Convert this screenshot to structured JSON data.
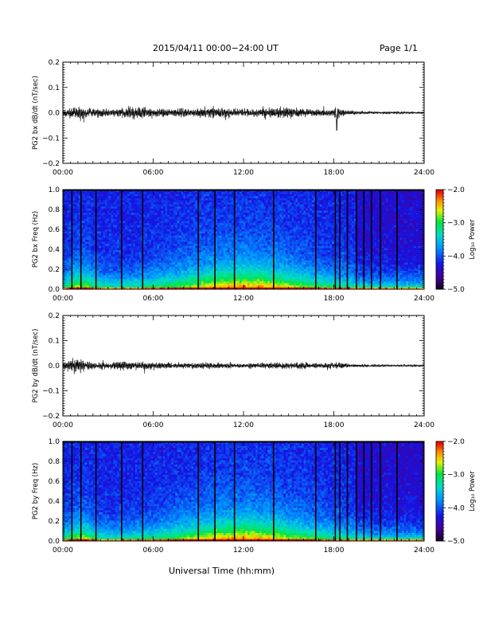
{
  "header": {
    "title": "2015/04/11  00:00−24:00 UT",
    "page": "Page 1/1"
  },
  "chart_data": [
    {
      "type": "line",
      "ylabel": "PG2 bx dB/dt (nT/sec)",
      "xlim": [
        0,
        24
      ],
      "ylim": [
        -0.2,
        0.2
      ],
      "yticks": [
        -0.2,
        -0.1,
        0.0,
        0.1,
        0.2
      ],
      "ytick_labels": [
        "−0.2",
        "−0.1",
        "0.0",
        "0.1",
        "0.2"
      ],
      "xtick_labels": [
        "00:00",
        "06:00",
        "12:00",
        "18:00",
        "24:00"
      ],
      "series": [
        {
          "color": "#000000",
          "envelope_hours": [
            0,
            0.5,
            1,
            1.5,
            2,
            2.5,
            3,
            3.5,
            4,
            4.5,
            5,
            5.5,
            6,
            6.5,
            7,
            7.5,
            8,
            8.5,
            9,
            9.5,
            10,
            10.5,
            11,
            11.5,
            12,
            12.5,
            13,
            13.5,
            14,
            14.5,
            15,
            15.5,
            16,
            16.5,
            17,
            17.5,
            18,
            18.2,
            18.5,
            19,
            19.5,
            20,
            20.5,
            21,
            21.5,
            22,
            22.5,
            23,
            23.5,
            24
          ],
          "envelope_amplitude": [
            0.03,
            0.04,
            0.05,
            0.045,
            0.035,
            0.035,
            0.03,
            0.035,
            0.04,
            0.045,
            0.05,
            0.045,
            0.035,
            0.035,
            0.03,
            0.03,
            0.035,
            0.03,
            0.035,
            0.04,
            0.045,
            0.04,
            0.035,
            0.03,
            0.03,
            0.035,
            0.03,
            0.035,
            0.04,
            0.045,
            0.04,
            0.04,
            0.035,
            0.03,
            0.03,
            0.025,
            0.03,
            0.07,
            0.03,
            0.02,
            0.015,
            0.012,
            0.012,
            0.01,
            0.01,
            0.01,
            0.01,
            0.008,
            0.008,
            0.008
          ]
        }
      ]
    },
    {
      "type": "heatmap",
      "ylabel": "PG2 bx Freq (Hz)",
      "xlim": [
        0,
        24
      ],
      "ylim": [
        0.0,
        1.0
      ],
      "yticks": [
        0.0,
        0.2,
        0.4,
        0.6,
        0.8,
        1.0
      ],
      "ytick_labels": [
        "0.0",
        "0.2",
        "0.4",
        "0.6",
        "0.8",
        "1.0"
      ],
      "xtick_labels": [
        "00:00",
        "06:00",
        "12:00",
        "18:00",
        "24:00"
      ],
      "colorbar": {
        "label": "Log₁₀ Power",
        "range": [
          -5.0,
          -2.0
        ],
        "tick_labels": [
          "−2.0",
          "−3.0",
          "−4.0",
          "−5.0"
        ],
        "colormap": "rainbow"
      },
      "data_gap_hours": [
        0.6,
        1.2,
        2.2,
        3.9,
        5.3,
        9.0,
        10.1,
        11.4,
        14.0,
        16.8,
        18.1,
        18.4,
        18.9,
        19.5,
        20.0,
        20.5,
        21.1,
        22.2
      ]
    },
    {
      "type": "line",
      "ylabel": "PG2 by dB/dt (nT/sec)",
      "xlim": [
        0,
        24
      ],
      "ylim": [
        -0.2,
        0.2
      ],
      "yticks": [
        -0.2,
        -0.1,
        0.0,
        0.1,
        0.2
      ],
      "ytick_labels": [
        "−0.2",
        "−0.1",
        "0.0",
        "0.1",
        "0.2"
      ],
      "xtick_labels": [
        "00:00",
        "06:00",
        "12:00",
        "18:00",
        "24:00"
      ],
      "series": [
        {
          "color": "#000000",
          "envelope_hours": [
            0,
            0.5,
            1,
            1.5,
            2,
            2.5,
            3,
            3.5,
            4,
            4.5,
            5,
            5.5,
            6,
            6.5,
            7,
            7.5,
            8,
            8.5,
            9,
            9.5,
            10,
            10.5,
            11,
            11.5,
            12,
            12.5,
            13,
            13.5,
            14,
            14.5,
            15,
            15.5,
            16,
            16.5,
            17,
            17.5,
            18,
            18.5,
            19,
            19.5,
            20,
            20.5,
            21,
            21.5,
            22,
            22.5,
            23,
            23.5,
            24
          ],
          "envelope_amplitude": [
            0.03,
            0.045,
            0.06,
            0.04,
            0.03,
            0.03,
            0.025,
            0.03,
            0.035,
            0.03,
            0.03,
            0.03,
            0.025,
            0.025,
            0.025,
            0.02,
            0.02,
            0.02,
            0.025,
            0.025,
            0.025,
            0.02,
            0.02,
            0.02,
            0.02,
            0.025,
            0.02,
            0.025,
            0.025,
            0.025,
            0.025,
            0.025,
            0.03,
            0.02,
            0.02,
            0.02,
            0.025,
            0.03,
            0.015,
            0.012,
            0.01,
            0.01,
            0.01,
            0.008,
            0.008,
            0.008,
            0.008,
            0.008,
            0.008
          ]
        }
      ]
    },
    {
      "type": "heatmap",
      "ylabel": "PG2 by Freq (Hz)",
      "xlim": [
        0,
        24
      ],
      "ylim": [
        0.0,
        1.0
      ],
      "yticks": [
        0.0,
        0.2,
        0.4,
        0.6,
        0.8,
        1.0
      ],
      "ytick_labels": [
        "0.0",
        "0.2",
        "0.4",
        "0.6",
        "0.8",
        "1.0"
      ],
      "xtick_labels": [
        "00:00",
        "06:00",
        "12:00",
        "18:00",
        "24:00"
      ],
      "colorbar": {
        "label": "Log₁₀ Power",
        "range": [
          -5.0,
          -2.0
        ],
        "tick_labels": [
          "−2.0",
          "−3.0",
          "−4.0",
          "−5.0"
        ],
        "colormap": "rainbow"
      },
      "data_gap_hours": [
        0.6,
        1.2,
        2.2,
        3.9,
        5.3,
        9.0,
        10.1,
        11.4,
        14.0,
        16.8,
        18.1,
        18.4,
        18.9,
        19.5,
        20.0,
        20.5,
        21.1,
        22.2
      ]
    }
  ],
  "xaxis_title": "Universal Time (hh:mm)"
}
